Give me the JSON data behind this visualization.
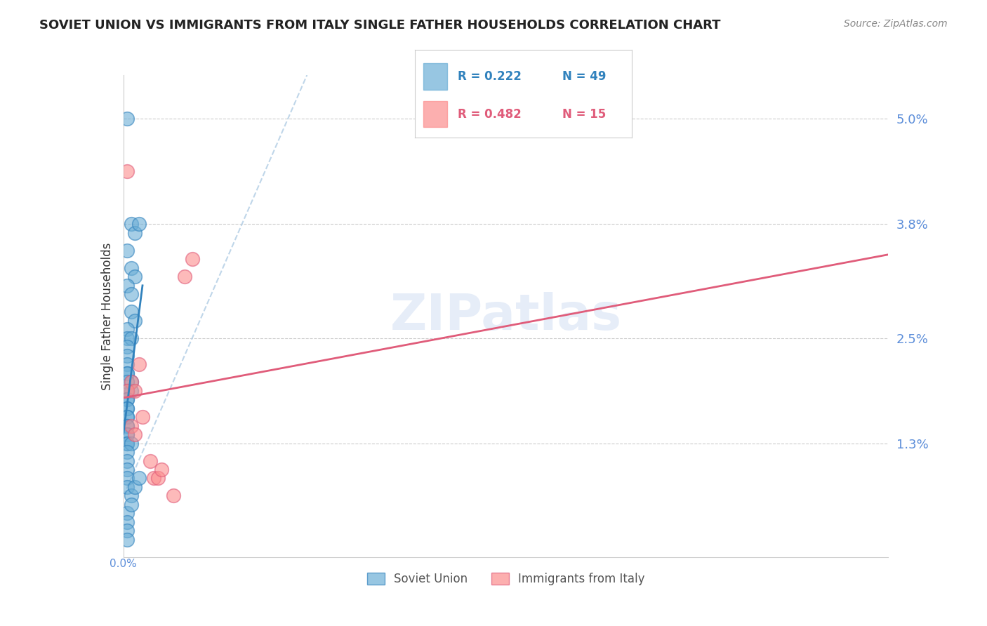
{
  "title": "SOVIET UNION VS IMMIGRANTS FROM ITALY SINGLE FATHER HOUSEHOLDS CORRELATION CHART",
  "source": "Source: ZipAtlas.com",
  "ylabel": "Single Father Households",
  "xlim": [
    0.0,
    0.2
  ],
  "ylim": [
    0.0,
    0.055
  ],
  "ytick_positions": [
    0.013,
    0.025,
    0.038,
    0.05
  ],
  "ytick_labels": [
    "1.3%",
    "2.5%",
    "3.8%",
    "5.0%"
  ],
  "background_color": "#ffffff",
  "watermark": "ZIPatlas",
  "blue_color": "#6baed6",
  "pink_color": "#fc8d8d",
  "blue_line_color": "#3182bd",
  "pink_line_color": "#e05c7a",
  "blue_dash_color": "#b0cce4",
  "grid_color": "#cccccc",
  "right_label_color": "#5b8dd9",
  "soviet_x": [
    0.001,
    0.002,
    0.003,
    0.004,
    0.001,
    0.002,
    0.003,
    0.001,
    0.002,
    0.002,
    0.003,
    0.001,
    0.001,
    0.002,
    0.001,
    0.001,
    0.001,
    0.001,
    0.001,
    0.002,
    0.001,
    0.002,
    0.001,
    0.001,
    0.001,
    0.001,
    0.001,
    0.001,
    0.001,
    0.001,
    0.001,
    0.001,
    0.001,
    0.001,
    0.001,
    0.002,
    0.001,
    0.001,
    0.001,
    0.001,
    0.001,
    0.002,
    0.003,
    0.004,
    0.001,
    0.002,
    0.001,
    0.001,
    0.001
  ],
  "soviet_y": [
    0.05,
    0.038,
    0.037,
    0.038,
    0.035,
    0.033,
    0.032,
    0.031,
    0.03,
    0.028,
    0.027,
    0.026,
    0.025,
    0.025,
    0.024,
    0.023,
    0.022,
    0.021,
    0.021,
    0.02,
    0.02,
    0.019,
    0.019,
    0.018,
    0.018,
    0.017,
    0.017,
    0.016,
    0.016,
    0.015,
    0.015,
    0.014,
    0.014,
    0.013,
    0.013,
    0.013,
    0.012,
    0.011,
    0.01,
    0.009,
    0.008,
    0.007,
    0.008,
    0.009,
    0.005,
    0.006,
    0.004,
    0.003,
    0.002
  ],
  "italy_x": [
    0.001,
    0.002,
    0.001,
    0.003,
    0.004,
    0.002,
    0.003,
    0.005,
    0.007,
    0.008,
    0.009,
    0.01,
    0.013,
    0.016,
    0.018
  ],
  "italy_y": [
    0.044,
    0.02,
    0.019,
    0.019,
    0.022,
    0.015,
    0.014,
    0.016,
    0.011,
    0.009,
    0.009,
    0.01,
    0.007,
    0.032,
    0.034
  ]
}
